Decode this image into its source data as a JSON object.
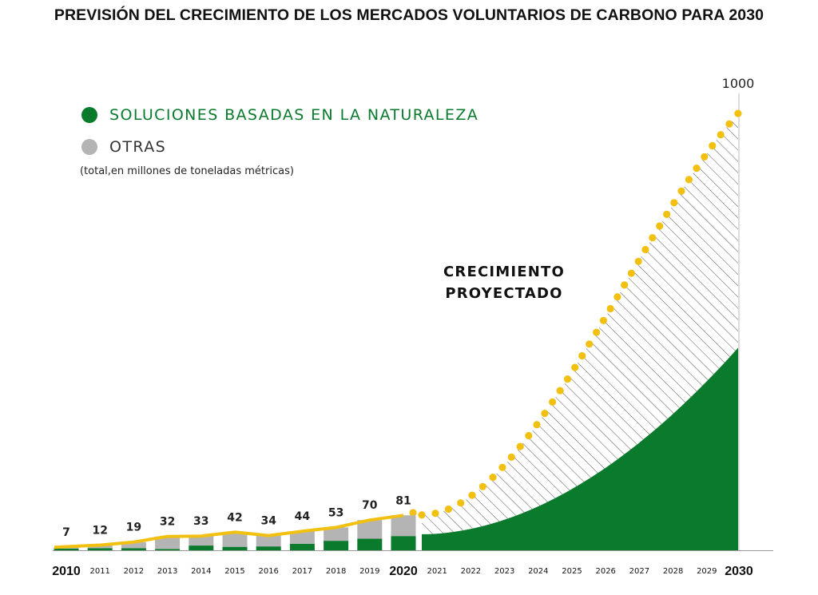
{
  "title": "PREVISIÓN DEL CRECIMIENTO DE LOS MERCADOS VOLUNTARIOS DE CARBONO PARA 2030",
  "legend": [
    {
      "label": "SOLUCIONES BASADAS EN LA NATURALEZA",
      "color": "#0a7a2c"
    },
    {
      "label": "OTRAS",
      "color": "#b4b4b4"
    }
  ],
  "unit_note": "(total,en millones de toneladas métricas)",
  "projection_label_line1": "CRECIMIENTO",
  "projection_label_line2": "PROYECTADO",
  "max_label": "1000",
  "colors": {
    "nature": "#0a7a2c",
    "other": "#b4b4b4",
    "total_line": "#f2c010",
    "hatch": "#555555"
  },
  "chart_data": {
    "type": "bar",
    "title": "PREVISIÓN DEL CRECIMIENTO DE LOS MERCADOS VOLUNTARIOS DE CARBONO PARA 2030",
    "unit": "(total,en millones de toneladas métricas)",
    "categories": [
      "2010",
      "2011",
      "2012",
      "2013",
      "2014",
      "2015",
      "2016",
      "2017",
      "2018",
      "2019",
      "2020"
    ],
    "series": [
      {
        "name": "SOLUCIONES BASADAS EN LA NATURALEZA",
        "values": [
          4,
          5,
          5,
          3,
          11,
          8,
          9,
          15,
          22,
          27,
          33
        ]
      },
      {
        "name": "OTRAS",
        "values": [
          3,
          7,
          14,
          29,
          22,
          34,
          25,
          29,
          31,
          43,
          48
        ]
      }
    ],
    "totals": [
      7,
      12,
      19,
      32,
      33,
      42,
      34,
      44,
      53,
      70,
      81
    ],
    "projection": {
      "years": [
        "2021",
        "2022",
        "2023",
        "2024",
        "2025",
        "2026",
        "2027",
        "2028",
        "2029",
        "2030"
      ],
      "total_end": 1000,
      "nature_end": 460
    },
    "x_axis_labels": [
      "2010",
      "2011",
      "2012",
      "2013",
      "2014",
      "2015",
      "2016",
      "2017",
      "2018",
      "2019",
      "2020",
      "2021",
      "2022",
      "2023",
      "2024",
      "2025",
      "2026",
      "2027",
      "2028",
      "2029",
      "2030"
    ],
    "major_years": [
      "2010",
      "2020",
      "2030"
    ],
    "ylim": [
      0,
      1000
    ],
    "grid": false
  }
}
